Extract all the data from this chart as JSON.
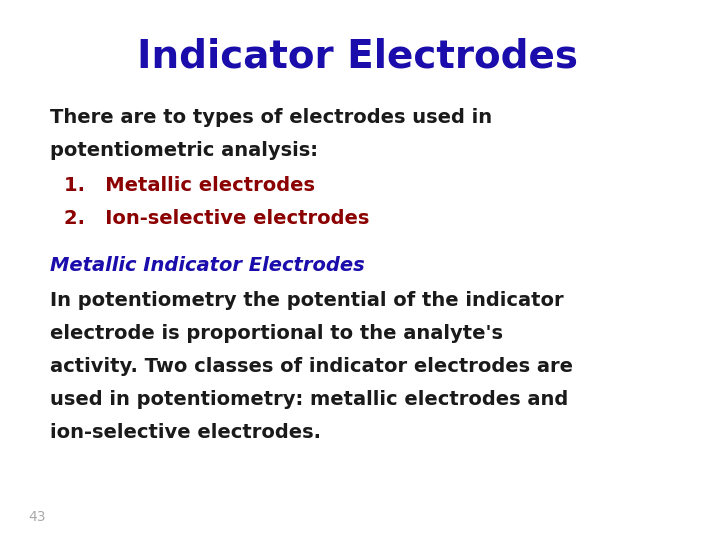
{
  "title": "Indicator Electrodes",
  "title_color": "#1a0dab",
  "title_fontsize": 28,
  "background_color": "#ffffff",
  "page_number": "43",
  "body_fontsize": 14,
  "body_bold": true,
  "sections": [
    {
      "type": "paragraph",
      "color": "#1a1a1a",
      "text": "There are to types of electrodes used in\npotentiometric analysis:"
    },
    {
      "type": "list_item",
      "number": "1.",
      "color": "#8B0000",
      "text": "Metallic electrodes"
    },
    {
      "type": "list_item",
      "number": "2.",
      "color": "#8B0000",
      "text": "Ion-selective electrodes"
    },
    {
      "type": "spacer"
    },
    {
      "type": "heading2",
      "color": "#1a0dab",
      "text": "Metallic Indicator Electrodes"
    },
    {
      "type": "paragraph",
      "color": "#1a1a1a",
      "text": "In potentiometry the potential of the indicator\nelectrode is proportional to the analyte's\nactivity. Two classes of indicator electrodes are\nused in potentiometry: metallic electrodes and\nion-selective electrodes."
    }
  ]
}
